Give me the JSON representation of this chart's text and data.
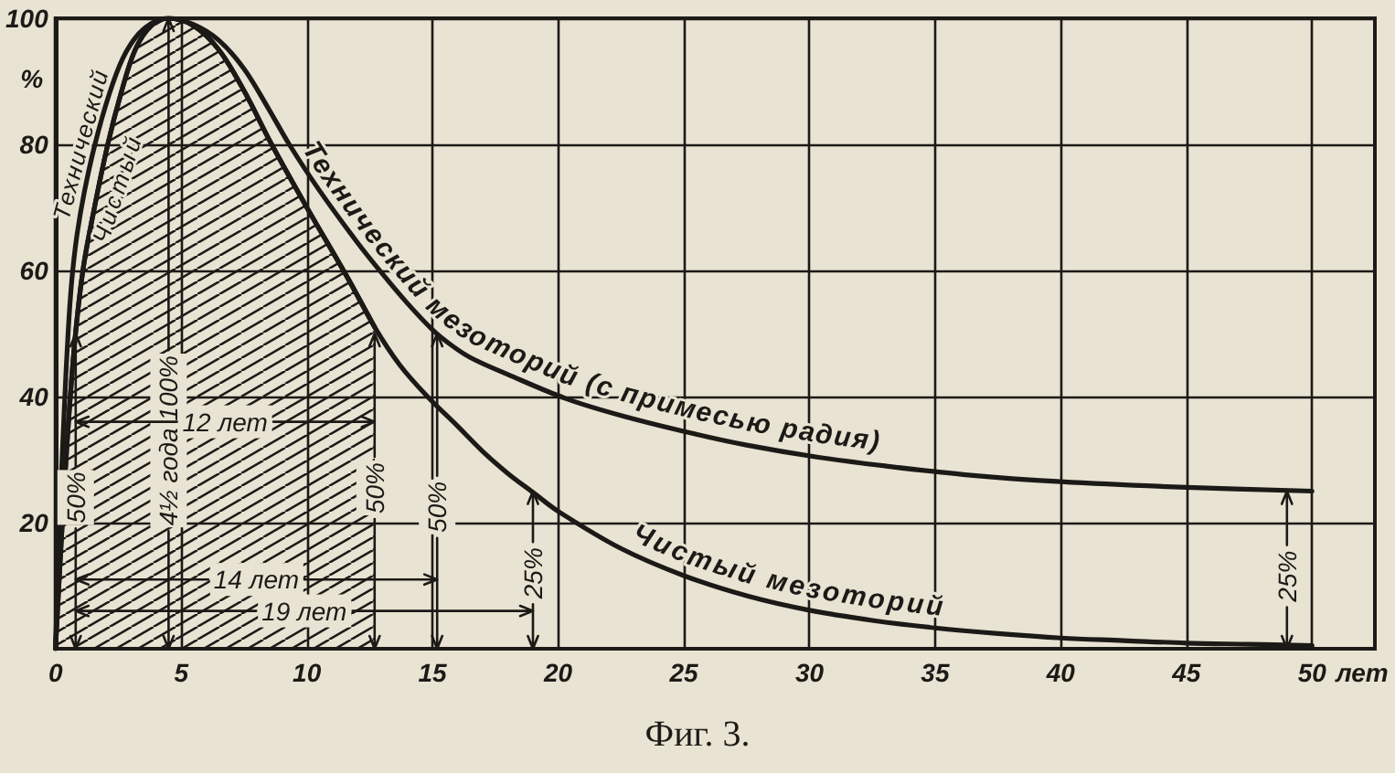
{
  "chart_data": {
    "type": "line",
    "title": "Фиг. 3.",
    "xlabel": "лет",
    "ylabel": "%",
    "xlim": [
      0,
      52.5
    ],
    "ylim": [
      0,
      100
    ],
    "xticks": [
      0,
      5,
      10,
      15,
      20,
      25,
      30,
      35,
      40,
      45,
      50
    ],
    "yticks": [
      20,
      40,
      60,
      80,
      100
    ],
    "grid": true,
    "marker": "none",
    "line_style": "solid",
    "series": [
      {
        "name": "Технический мезоторий (с примесью радия)",
        "color": "#1c1a17",
        "x": [
          0,
          0.15,
          0.35,
          0.5,
          0.65,
          0.85,
          1.15,
          1.57,
          2.1,
          2.66,
          3.3,
          4,
          4.5,
          5.5,
          6.5,
          7.5,
          8.5,
          9.3,
          10.5,
          12,
          13,
          14,
          15,
          15.7,
          16.5,
          18,
          20.3,
          22.5,
          25.3,
          27.5,
          30.3,
          33,
          36.2,
          40,
          45,
          50
        ],
        "values": [
          0,
          19,
          38,
          50,
          58.5,
          65.5,
          72.5,
          80,
          87.5,
          93.5,
          97.5,
          99.6,
          100,
          99,
          96.5,
          92,
          85.5,
          80,
          72.7,
          64.5,
          59.5,
          54.8,
          50.6,
          48.3,
          46.2,
          43.5,
          39.7,
          37,
          34.2,
          32.3,
          30.4,
          29,
          27.6,
          26.5,
          25.6,
          25
        ]
      },
      {
        "name": "Чистый мезоторий",
        "color": "#1c1a17",
        "x": [
          0,
          0.2,
          0.45,
          0.75,
          1.09,
          1.5,
          2.08,
          2.6,
          3.17,
          3.8,
          4.5,
          5.5,
          6.5,
          7.5,
          8.6,
          10,
          11.6,
          12.7,
          13.7,
          14.8,
          16,
          17,
          18,
          19,
          20,
          22.5,
          25,
          27.5,
          30,
          32.5,
          35,
          37.5,
          40,
          42.5,
          45,
          47.5,
          50
        ],
        "values": [
          0,
          15,
          32,
          48,
          60,
          69,
          80,
          88,
          95,
          98.8,
          100,
          98.8,
          95,
          88.5,
          80,
          70,
          59,
          51,
          45,
          40,
          35.3,
          31.3,
          27.8,
          24.8,
          21.8,
          15.9,
          11.6,
          8.4,
          6.1,
          4.5,
          3.3,
          2.4,
          1.7,
          1.3,
          0.9,
          0.7,
          0.5
        ]
      },
      {
        "type": "area",
        "color": "#1c1a17",
        "x": [
          0,
          0.2,
          0.45,
          0.75,
          1.09,
          1.5,
          2.08,
          2.6,
          3.17,
          3.8,
          4.5,
          5.5,
          6.5,
          7.5,
          8.6,
          10,
          11.6,
          12.7
        ],
        "values": [
          0,
          15,
          32,
          48,
          60,
          69,
          80,
          88,
          95,
          98.8,
          100,
          98.8,
          95,
          88.5,
          80,
          70,
          59,
          51
        ]
      }
    ],
    "annotations": [
      "Технический",
      "Чистый",
      {
        "text": "4½ года 100%",
        "x": 4.5,
        "y": 100
      },
      {
        "text": "50%",
        "x": 0.8,
        "y": 50
      },
      {
        "text": "50%",
        "x": 12.7,
        "y": 50
      },
      "50%",
      {
        "text": "25%",
        "x": 19,
        "y": 25
      },
      {
        "text": "25%",
        "x": 49,
        "y": 25
      },
      "12 лет",
      "14 лет",
      "19 лет"
    ]
  }
}
